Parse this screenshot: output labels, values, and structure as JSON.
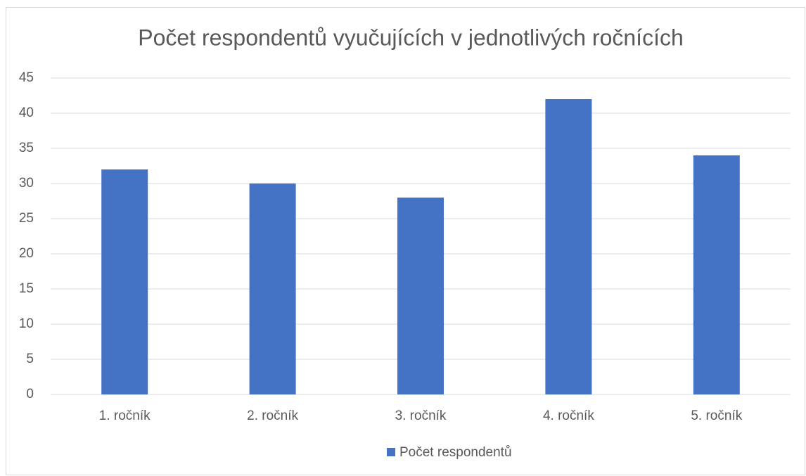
{
  "chart_data": {
    "type": "bar",
    "title": "Počet respondentů vyučujících v jednotlivých ročnících",
    "categories": [
      "1. ročník",
      "2. ročník",
      "3. ročník",
      "4. ročník",
      "5. ročník"
    ],
    "series": [
      {
        "name": "Počet respondentů",
        "color": "#4472c4",
        "values": [
          32,
          30,
          28,
          42,
          34
        ]
      }
    ],
    "ylim": [
      0,
      45
    ],
    "yticks": [
      0,
      5,
      10,
      15,
      20,
      25,
      30,
      35,
      40,
      45
    ],
    "grid": true,
    "legend": "bottom"
  }
}
